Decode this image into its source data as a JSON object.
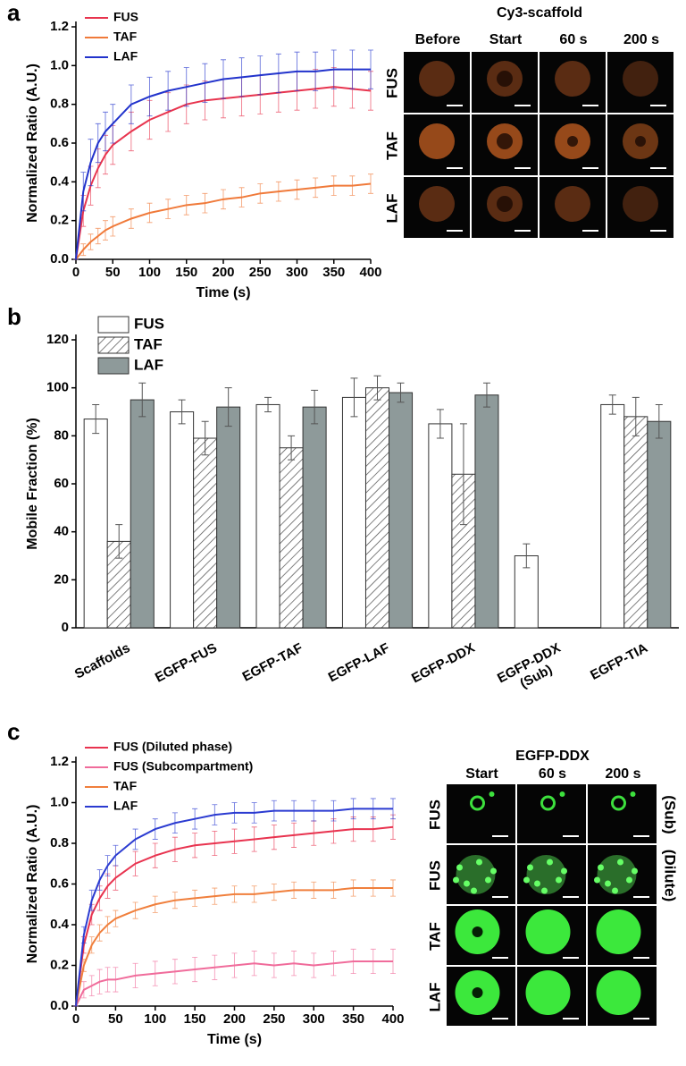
{
  "chart_data": [
    {
      "type": "line",
      "label": "a",
      "xlabel": "Time (s)",
      "ylabel": "Normalized Ratio (A.U.)",
      "x": [
        0,
        10,
        20,
        30,
        40,
        50,
        75,
        100,
        125,
        150,
        175,
        200,
        225,
        250,
        275,
        300,
        325,
        350,
        375,
        400
      ],
      "xlim": [
        0,
        400
      ],
      "xticks": [
        0,
        50,
        100,
        150,
        200,
        250,
        300,
        350,
        400
      ],
      "ylim": [
        0,
        1.2
      ],
      "yticks": [
        {
          "value": 0,
          "label": "0.0"
        },
        0.2,
        0.4,
        0.6,
        0.8,
        {
          "value": 1,
          "label": "1.0"
        },
        1.2
      ],
      "legend": "upper left",
      "series": [
        {
          "name": "FUS",
          "color": "#e8344e",
          "values": [
            0,
            0.25,
            0.38,
            0.47,
            0.54,
            0.59,
            0.66,
            0.72,
            0.76,
            0.8,
            0.82,
            0.83,
            0.84,
            0.85,
            0.86,
            0.87,
            0.88,
            0.89,
            0.88,
            0.87
          ],
          "errors": [
            0,
            0.08,
            0.1,
            0.1,
            0.1,
            0.1,
            0.1,
            0.1,
            0.1,
            0.1,
            0.1,
            0.1,
            0.1,
            0.1,
            0.1,
            0.1,
            0.1,
            0.1,
            0.1,
            0.1
          ]
        },
        {
          "name": "TAF",
          "color": "#f07a3a",
          "values": [
            0,
            0.05,
            0.09,
            0.12,
            0.15,
            0.17,
            0.21,
            0.24,
            0.26,
            0.28,
            0.29,
            0.31,
            0.32,
            0.34,
            0.35,
            0.36,
            0.37,
            0.38,
            0.38,
            0.39
          ],
          "errors": [
            0,
            0.03,
            0.04,
            0.04,
            0.05,
            0.05,
            0.05,
            0.05,
            0.05,
            0.05,
            0.05,
            0.05,
            0.05,
            0.05,
            0.05,
            0.05,
            0.05,
            0.05,
            0.05,
            0.05
          ]
        },
        {
          "name": "LAF",
          "color": "#2233cc",
          "values": [
            0,
            0.35,
            0.5,
            0.6,
            0.66,
            0.7,
            0.8,
            0.84,
            0.87,
            0.89,
            0.91,
            0.93,
            0.94,
            0.95,
            0.96,
            0.97,
            0.97,
            0.98,
            0.98,
            0.98
          ],
          "errors": [
            0,
            0.1,
            0.12,
            0.1,
            0.1,
            0.1,
            0.1,
            0.1,
            0.1,
            0.1,
            0.1,
            0.1,
            0.1,
            0.1,
            0.1,
            0.1,
            0.1,
            0.1,
            0.1,
            0.1
          ]
        }
      ]
    },
    {
      "type": "bar",
      "label": "b",
      "ylabel": "Mobile Fraction (%)",
      "categories": [
        "Scaffolds",
        "EGFP-FUS",
        "EGFP-TAF",
        "EGFP-LAF",
        "EGFP-DDX",
        "EGFP-DDX\n(Sub)",
        "EGFP-TIA"
      ],
      "ylim": [
        0,
        120
      ],
      "yticks": [
        0,
        20,
        40,
        60,
        80,
        100,
        120
      ],
      "legend": "upper left",
      "series": [
        {
          "name": "FUS",
          "color": "#ffffff",
          "values": [
            87,
            90,
            93,
            96,
            85,
            30,
            93
          ],
          "errors": [
            6,
            5,
            3,
            8,
            6,
            5,
            4
          ]
        },
        {
          "name": "TAF",
          "color": "#ffffff",
          "hatch": true,
          "values": [
            36,
            79,
            75,
            100,
            64,
            null,
            88
          ],
          "errors": [
            7,
            7,
            5,
            5,
            21,
            null,
            8
          ]
        },
        {
          "name": "LAF",
          "color": "#8e9a9a",
          "values": [
            95,
            92,
            92,
            98,
            97,
            null,
            86
          ],
          "errors": [
            7,
            8,
            7,
            4,
            5,
            null,
            7
          ]
        }
      ]
    },
    {
      "type": "line",
      "label": "c",
      "xlabel": "Time (s)",
      "ylabel": "Normalized Ratio (A.U.)",
      "x": [
        0,
        10,
        20,
        30,
        40,
        50,
        75,
        100,
        125,
        150,
        175,
        200,
        225,
        250,
        275,
        300,
        325,
        350,
        375,
        400
      ],
      "xlim": [
        0,
        400
      ],
      "xticks": [
        0,
        50,
        100,
        150,
        200,
        250,
        300,
        350,
        400
      ],
      "ylim": [
        0,
        1.2
      ],
      "yticks": [
        {
          "value": 0,
          "label": "0.0"
        },
        0.2,
        0.4,
        0.6,
        0.8,
        {
          "value": 1,
          "label": "1.0"
        },
        1.2
      ],
      "legend": "upper left",
      "series": [
        {
          "name": "FUS (Diluted phase)",
          "color": "#e8334f",
          "values": [
            0,
            0.3,
            0.45,
            0.53,
            0.59,
            0.63,
            0.7,
            0.74,
            0.77,
            0.79,
            0.8,
            0.81,
            0.82,
            0.83,
            0.84,
            0.85,
            0.86,
            0.87,
            0.87,
            0.88
          ],
          "errors": [
            0,
            0.04,
            0.05,
            0.06,
            0.06,
            0.06,
            0.06,
            0.06,
            0.06,
            0.06,
            0.06,
            0.06,
            0.06,
            0.06,
            0.06,
            0.06,
            0.06,
            0.06,
            0.06,
            0.06
          ]
        },
        {
          "name": "FUS (Subcompartment)",
          "color": "#f06c9b",
          "values": [
            0,
            0.08,
            0.1,
            0.12,
            0.13,
            0.13,
            0.15,
            0.16,
            0.17,
            0.18,
            0.19,
            0.2,
            0.21,
            0.2,
            0.21,
            0.2,
            0.21,
            0.22,
            0.22,
            0.22
          ],
          "errors": [
            0,
            0.04,
            0.05,
            0.06,
            0.06,
            0.06,
            0.06,
            0.06,
            0.06,
            0.06,
            0.06,
            0.06,
            0.06,
            0.06,
            0.06,
            0.06,
            0.06,
            0.06,
            0.06,
            0.06
          ]
        },
        {
          "name": "TAF",
          "color": "#f07f3c",
          "values": [
            0,
            0.2,
            0.3,
            0.36,
            0.4,
            0.43,
            0.47,
            0.5,
            0.52,
            0.53,
            0.54,
            0.55,
            0.55,
            0.56,
            0.57,
            0.57,
            0.57,
            0.58,
            0.58,
            0.58
          ],
          "errors": [
            0,
            0.03,
            0.04,
            0.04,
            0.04,
            0.04,
            0.04,
            0.04,
            0.04,
            0.04,
            0.04,
            0.04,
            0.04,
            0.04,
            0.04,
            0.04,
            0.04,
            0.04,
            0.04,
            0.04
          ]
        },
        {
          "name": "LAF",
          "color": "#2b3bd1",
          "values": [
            0,
            0.35,
            0.52,
            0.62,
            0.69,
            0.74,
            0.82,
            0.87,
            0.9,
            0.92,
            0.94,
            0.95,
            0.95,
            0.96,
            0.96,
            0.96,
            0.96,
            0.97,
            0.97,
            0.97
          ],
          "errors": [
            0,
            0.04,
            0.05,
            0.05,
            0.05,
            0.05,
            0.05,
            0.05,
            0.05,
            0.05,
            0.05,
            0.05,
            0.05,
            0.05,
            0.05,
            0.05,
            0.05,
            0.05,
            0.05,
            0.05
          ]
        }
      ]
    }
  ],
  "image_grids": [
    {
      "title": "Cy3-scaffold",
      "columns": [
        "Before",
        "Start",
        "60 s",
        "200 s"
      ],
      "rows": [
        "FUS",
        "TAF",
        "LAF"
      ]
    },
    {
      "title": "EGFP-DDX",
      "columns": [
        "Start",
        "60 s",
        "200 s"
      ],
      "rows": [
        "FUS",
        "FUS",
        "TAF",
        "LAF"
      ],
      "side_labels": [
        "(Sub)",
        "(Dilute)"
      ]
    }
  ]
}
